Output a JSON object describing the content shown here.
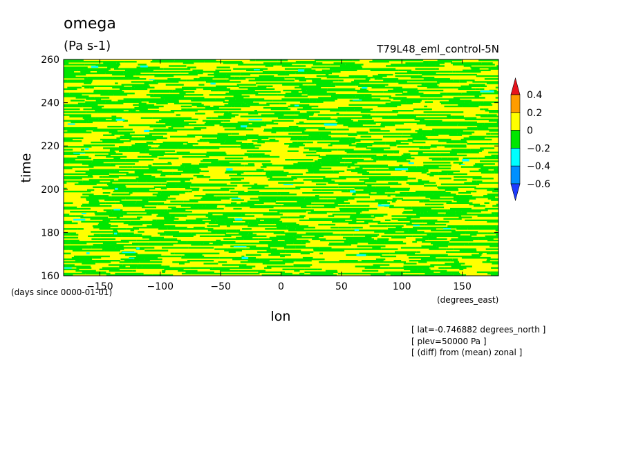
{
  "header": {
    "title": "omega",
    "units": "(Pa s-1)",
    "dataset": "T79L48_eml_control-5N"
  },
  "axes": {
    "xlabel": "lon",
    "ylabel": "time",
    "x_units": "(degrees_east)",
    "y_units": "(days since 0000-01-01)"
  },
  "annotations": [
    "[ lat=-0.746882 degrees_north ]",
    "[ plev=50000 Pa ]",
    "[ (diff) from (mean) zonal ]"
  ],
  "colors": {
    "above_0.4": "#e8141c",
    "0.2_to_0.4": "#ff9c00",
    "0_to_0.2": "#ffff00",
    "-0.2_to_0": "#00e600",
    "-0.4_to_-0.2": "#00ffff",
    "-0.6_to_-0.4": "#0090ff",
    "below_-0.6": "#1e3cff"
  },
  "chart_data": {
    "type": "heatmap",
    "title": "omega",
    "subtitle": "(Pa s-1)",
    "xlabel": "lon",
    "ylabel": "time",
    "xlim": [
      -180,
      180
    ],
    "ylim": [
      160,
      260
    ],
    "x_ticks": [
      -150,
      -100,
      -50,
      0,
      50,
      100,
      150
    ],
    "y_ticks": [
      160,
      180,
      200,
      220,
      240,
      260
    ],
    "colorbar": {
      "levels": [
        -0.6,
        -0.4,
        -0.2,
        0,
        0.2,
        0.4
      ],
      "labels": [
        "0.4",
        "0.2",
        "0",
        "-0.2",
        "-0.4",
        "-0.6"
      ],
      "colors": [
        "#1e3cff",
        "#0090ff",
        "#00ffff",
        "#00e600",
        "#ffff00",
        "#ff9c00",
        "#e8141c"
      ]
    }
  }
}
